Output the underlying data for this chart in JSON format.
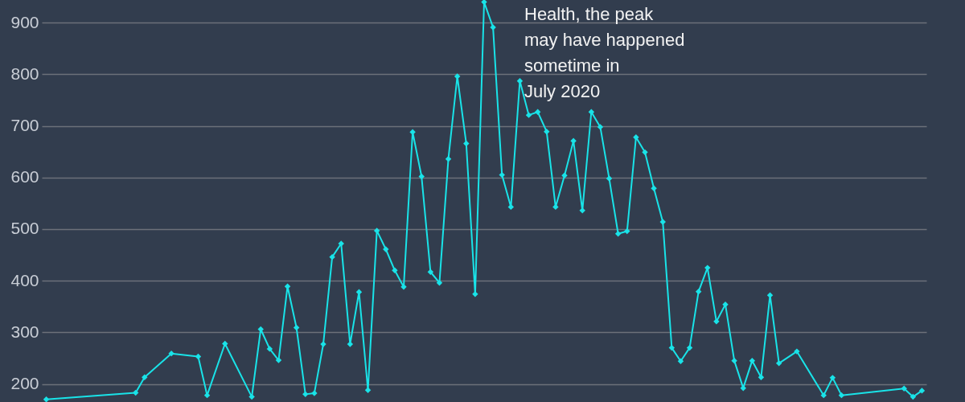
{
  "chart_data": {
    "type": "line",
    "categories": [
      null,
      null,
      null,
      null,
      null,
      null,
      null,
      null,
      null,
      null,
      null,
      null,
      null,
      null,
      null,
      null,
      null,
      null,
      null,
      null,
      null,
      null,
      null,
      null,
      null,
      null,
      null,
      null,
      null,
      null,
      null,
      null,
      null,
      null,
      null,
      null,
      null,
      null,
      null,
      null,
      null,
      null,
      null,
      null,
      null,
      null,
      null,
      null,
      null,
      null,
      null,
      null,
      null,
      null,
      null,
      null,
      null,
      null,
      null,
      null,
      null,
      null,
      null,
      null,
      null,
      null,
      null,
      null,
      null,
      null,
      null,
      null,
      null,
      null,
      null,
      null,
      null,
      null,
      null,
      null,
      null,
      null,
      null,
      null,
      null,
      null,
      null,
      null,
      null,
      null,
      null,
      null,
      null,
      null,
      null,
      null,
      null,
      null,
      null
    ],
    "series": [
      {
        "color": "#19e3e8",
        "values": [
          170,
          null,
          null,
          null,
          null,
          null,
          null,
          null,
          null,
          null,
          183,
          213,
          null,
          null,
          259,
          null,
          null,
          253,
          178,
          null,
          278,
          null,
          null,
          175,
          306,
          268,
          246,
          389,
          309,
          180,
          182,
          277,
          446,
          472,
          277,
          378,
          188,
          497,
          461,
          420,
          388,
          688,
          602,
          417,
          396,
          636,
          796,
          666,
          374,
          940,
          891,
          605,
          543,
          787,
          721,
          727,
          689,
          543,
          604,
          671,
          536,
          727,
          698,
          598,
          491,
          496,
          678,
          649,
          579,
          514,
          270,
          244,
          270,
          379,
          425,
          321,
          354,
          245,
          192,
          245,
          213,
          372,
          240,
          null,
          263,
          null,
          null,
          178,
          212,
          178,
          null,
          null,
          null,
          null,
          null,
          null,
          191,
          175,
          187
        ]
      }
    ],
    "ylim": [
      165,
      944
    ],
    "yticks": [
      200,
      300,
      400,
      500,
      600,
      700,
      800,
      900
    ],
    "grid": "y",
    "marker": "diamond",
    "annotations": [
      "Health, the peak\nmay have happened\nsometime in\nJuly 2020"
    ]
  }
}
